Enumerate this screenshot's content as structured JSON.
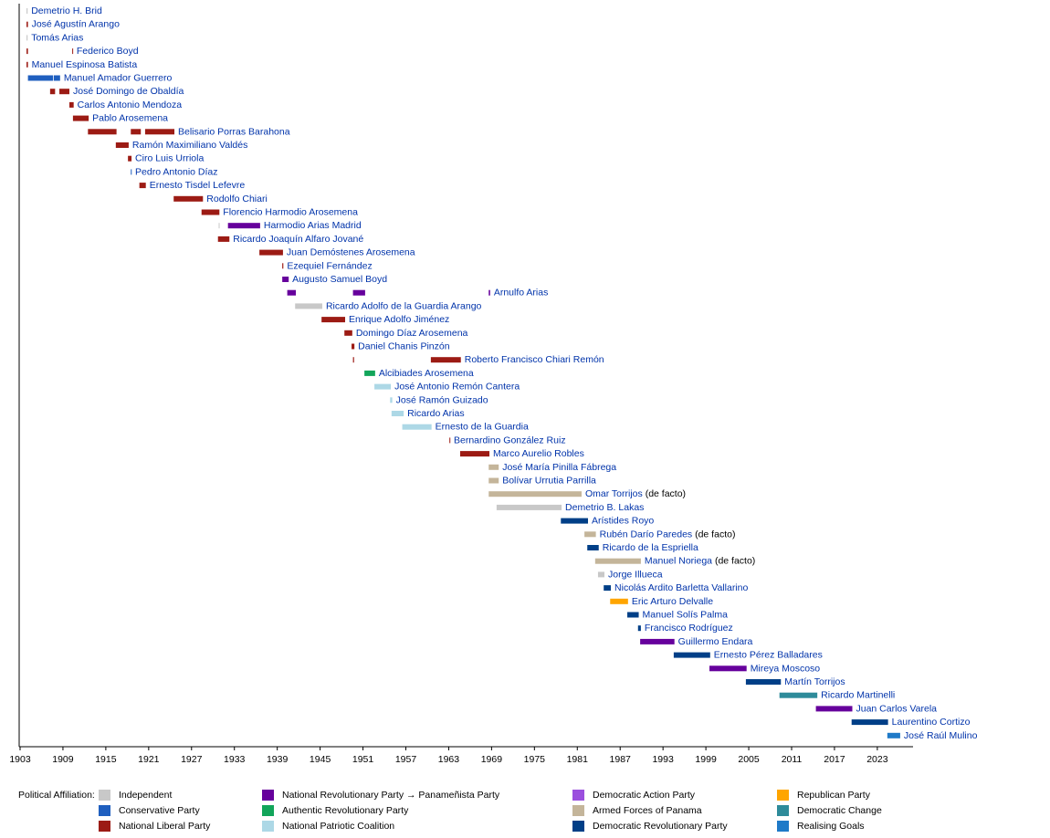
{
  "chart_data": {
    "type": "timeline",
    "xlim": [
      1903,
      2028
    ],
    "xticks": [
      1903,
      1909,
      1915,
      1921,
      1927,
      1933,
      1939,
      1945,
      1951,
      1957,
      1963,
      1969,
      1975,
      1981,
      1987,
      1993,
      1999,
      2005,
      2011,
      2017,
      2023
    ],
    "legend_title": "Political Affiliation:",
    "parties": [
      {
        "name": "Independent",
        "color": "#c8c8c8"
      },
      {
        "name": "Conservative Party",
        "color": "#1f5fbf"
      },
      {
        "name": "National Liberal Party",
        "color": "#9c1b14"
      },
      {
        "name": "National Revolutionary Party → Panameñista Party",
        "color": "#66009c"
      },
      {
        "name": "Authentic Revolutionary Party",
        "color": "#12a55a"
      },
      {
        "name": "National Patriotic Coalition",
        "color": "#add8e6"
      },
      {
        "name": "Democratic Action Party",
        "color": "#9b4fde"
      },
      {
        "name": "Armed Forces of Panama",
        "color": "#c4b59a"
      },
      {
        "name": "Democratic Revolutionary Party",
        "color": "#003f87"
      },
      {
        "name": "Republican Party",
        "color": "#ffa500"
      },
      {
        "name": "Democratic Change",
        "color": "#2e8b9a"
      },
      {
        "name": "Realising Goals",
        "color": "#1f7ac8"
      }
    ],
    "rows": [
      {
        "name": "Demetrio H. Brid",
        "segments": [
          {
            "start": 1903.9,
            "end": 1904.05,
            "party": "Independent"
          }
        ]
      },
      {
        "name": "José Agustín Arango",
        "segments": [
          {
            "start": 1903.9,
            "end": 1904.1,
            "party": "National Liberal Party"
          }
        ]
      },
      {
        "name": "Tomás Arias",
        "segments": [
          {
            "start": 1903.9,
            "end": 1904.05,
            "party": "Independent"
          }
        ]
      },
      {
        "name": "Federico Boyd",
        "segments": [
          {
            "start": 1903.9,
            "end": 1904.1,
            "party": "National Liberal Party"
          },
          {
            "start": 1910.3,
            "end": 1910.4,
            "party": "National Liberal Party"
          }
        ]
      },
      {
        "name": "Manuel Espinosa Batista",
        "segments": [
          {
            "start": 1903.9,
            "end": 1904.1,
            "party": "National Liberal Party"
          }
        ]
      },
      {
        "name": "Manuel Amador Guerrero",
        "segments": [
          {
            "start": 1904.1,
            "end": 1907.6,
            "party": "Conservative Party"
          },
          {
            "start": 1907.7,
            "end": 1908.6,
            "party": "Conservative Party"
          }
        ]
      },
      {
        "name": "José Domingo de Obaldía",
        "segments": [
          {
            "start": 1907.2,
            "end": 1907.9,
            "party": "National Liberal Party"
          },
          {
            "start": 1908.5,
            "end": 1909.9,
            "party": "National Liberal Party"
          }
        ]
      },
      {
        "name": "Carlos Antonio Mendoza",
        "segments": [
          {
            "start": 1909.9,
            "end": 1910.5,
            "party": "National Liberal Party"
          }
        ]
      },
      {
        "name": "Pablo Arosemena",
        "segments": [
          {
            "start": 1910.4,
            "end": 1912.6,
            "party": "National Liberal Party"
          }
        ]
      },
      {
        "name": "Belisario Porras Barahona",
        "segments": [
          {
            "start": 1912.5,
            "end": 1916.5,
            "party": "National Liberal Party"
          },
          {
            "start": 1918.5,
            "end": 1919.9,
            "party": "National Liberal Party"
          },
          {
            "start": 1920.5,
            "end": 1924.6,
            "party": "National Liberal Party"
          }
        ]
      },
      {
        "name": "Ramón Maximiliano Valdés",
        "segments": [
          {
            "start": 1916.4,
            "end": 1918.2,
            "party": "National Liberal Party"
          }
        ]
      },
      {
        "name": "Ciro Luis Urriola",
        "segments": [
          {
            "start": 1918.1,
            "end": 1918.6,
            "party": "National Liberal Party"
          }
        ]
      },
      {
        "name": "Pedro Antonio Díaz",
        "segments": [
          {
            "start": 1918.5,
            "end": 1918.6,
            "party": "Conservative Party"
          }
        ]
      },
      {
        "name": "Ernesto Tisdel Lefevre",
        "segments": [
          {
            "start": 1919.7,
            "end": 1920.6,
            "party": "National Liberal Party"
          }
        ]
      },
      {
        "name": "Rodolfo Chiari",
        "segments": [
          {
            "start": 1924.5,
            "end": 1928.6,
            "party": "National Liberal Party"
          }
        ]
      },
      {
        "name": "Florencio Harmodio Arosemena",
        "segments": [
          {
            "start": 1928.4,
            "end": 1930.9,
            "party": "National Liberal Party"
          }
        ]
      },
      {
        "name": "Harmodio Arias Madrid",
        "segments": [
          {
            "start": 1930.8,
            "end": 1930.9,
            "party": "Independent"
          },
          {
            "start": 1932.1,
            "end": 1936.6,
            "party": "National Revolutionary Party → Panameñista Party"
          }
        ]
      },
      {
        "name": "Ricardo Joaquín Alfaro Jované",
        "segments": [
          {
            "start": 1930.7,
            "end": 1932.3,
            "party": "National Liberal Party"
          }
        ]
      },
      {
        "name": "Juan Demóstenes Arosemena",
        "segments": [
          {
            "start": 1936.5,
            "end": 1939.8,
            "party": "National Liberal Party"
          }
        ]
      },
      {
        "name": "Ezequiel Fernández",
        "segments": [
          {
            "start": 1939.7,
            "end": 1939.85,
            "party": "National Liberal Party"
          }
        ]
      },
      {
        "name": "Augusto Samuel Boyd",
        "segments": [
          {
            "start": 1939.7,
            "end": 1940.6,
            "party": "National Revolutionary Party → Panameñista Party"
          }
        ]
      },
      {
        "name": "Arnulfo Arias",
        "segments": [
          {
            "start": 1940.4,
            "end": 1941.6,
            "party": "National Revolutionary Party → Panameñista Party"
          },
          {
            "start": 1949.6,
            "end": 1951.3,
            "party": "National Revolutionary Party → Panameñista Party"
          },
          {
            "start": 1968.6,
            "end": 1968.8,
            "party": "National Revolutionary Party → Panameñista Party"
          }
        ]
      },
      {
        "name": "Ricardo Adolfo de la Guardia Arango",
        "segments": [
          {
            "start": 1941.5,
            "end": 1945.3,
            "party": "Independent"
          }
        ]
      },
      {
        "name": "Enrique Adolfo Jiménez",
        "segments": [
          {
            "start": 1945.2,
            "end": 1948.5,
            "party": "National Liberal Party"
          }
        ]
      },
      {
        "name": "Domingo Díaz Arosemena",
        "segments": [
          {
            "start": 1948.4,
            "end": 1949.5,
            "party": "National Liberal Party"
          }
        ]
      },
      {
        "name": "Daniel Chanis Pinzón",
        "segments": [
          {
            "start": 1949.4,
            "end": 1949.8,
            "party": "National Liberal Party"
          }
        ]
      },
      {
        "name": "Roberto Francisco Chiari Remón",
        "segments": [
          {
            "start": 1949.6,
            "end": 1949.75,
            "party": "National Liberal Party"
          },
          {
            "start": 1960.5,
            "end": 1964.7,
            "party": "National Liberal Party"
          }
        ]
      },
      {
        "name": "Alcibiades Arosemena",
        "segments": [
          {
            "start": 1951.2,
            "end": 1952.7,
            "party": "Authentic Revolutionary Party"
          }
        ]
      },
      {
        "name": "José Antonio Remón Cantera",
        "segments": [
          {
            "start": 1952.6,
            "end": 1954.9,
            "party": "National Patriotic Coalition"
          }
        ]
      },
      {
        "name": "José Ramón Guizado",
        "segments": [
          {
            "start": 1954.8,
            "end": 1955.1,
            "party": "National Patriotic Coalition"
          }
        ]
      },
      {
        "name": "Ricardo Arias",
        "segments": [
          {
            "start": 1955.0,
            "end": 1956.7,
            "party": "National Patriotic Coalition"
          }
        ]
      },
      {
        "name": "Ernesto de la Guardia",
        "segments": [
          {
            "start": 1956.5,
            "end": 1960.6,
            "party": "National Patriotic Coalition"
          }
        ]
      },
      {
        "name": "Bernardino González Ruiz",
        "segments": [
          {
            "start": 1963.1,
            "end": 1963.2,
            "party": "National Liberal Party"
          }
        ]
      },
      {
        "name": "Marco Aurelio Robles",
        "segments": [
          {
            "start": 1964.6,
            "end": 1968.7,
            "party": "National Liberal Party"
          }
        ]
      },
      {
        "name": "José María Pinilla Fábrega",
        "segments": [
          {
            "start": 1968.6,
            "end": 1970.0,
            "party": "Armed Forces of Panama"
          }
        ]
      },
      {
        "name": "Bolívar Urrutia Parrilla",
        "segments": [
          {
            "start": 1968.6,
            "end": 1970.0,
            "party": "Armed Forces of Panama"
          }
        ]
      },
      {
        "name": "Omar Torrijos",
        "note": "(de facto)",
        "segments": [
          {
            "start": 1968.6,
            "end": 1981.6,
            "party": "Armed Forces of Panama"
          }
        ]
      },
      {
        "name": "Demetrio B. Lakas",
        "segments": [
          {
            "start": 1969.7,
            "end": 1978.8,
            "party": "Independent"
          }
        ]
      },
      {
        "name": "Arístides Royo",
        "segments": [
          {
            "start": 1978.7,
            "end": 1982.5,
            "party": "Democratic Revolutionary Party"
          }
        ]
      },
      {
        "name": "Rubén Darío Paredes",
        "note": "(de facto)",
        "segments": [
          {
            "start": 1982.0,
            "end": 1983.6,
            "party": "Armed Forces of Panama"
          }
        ]
      },
      {
        "name": "Ricardo de la Espriella",
        "segments": [
          {
            "start": 1982.4,
            "end": 1984.0,
            "party": "Democratic Revolutionary Party"
          }
        ]
      },
      {
        "name": "Manuel Noriega",
        "note": "(de facto)",
        "segments": [
          {
            "start": 1983.5,
            "end": 1989.9,
            "party": "Armed Forces of Panama"
          }
        ]
      },
      {
        "name": "Jorge Illueca",
        "segments": [
          {
            "start": 1983.9,
            "end": 1984.8,
            "party": "Independent"
          }
        ]
      },
      {
        "name": "Nicolás Ardito Barletta Vallarino",
        "segments": [
          {
            "start": 1984.7,
            "end": 1985.7,
            "party": "Democratic Revolutionary Party"
          }
        ]
      },
      {
        "name": "Eric Arturo Delvalle",
        "segments": [
          {
            "start": 1985.6,
            "end": 1988.1,
            "party": "Republican Party"
          }
        ]
      },
      {
        "name": "Manuel Solís Palma",
        "segments": [
          {
            "start": 1988.0,
            "end": 1989.6,
            "party": "Democratic Revolutionary Party"
          }
        ]
      },
      {
        "name": "Francisco Rodríguez",
        "segments": [
          {
            "start": 1989.5,
            "end": 1989.9,
            "party": "Democratic Revolutionary Party"
          }
        ]
      },
      {
        "name": "Guillermo Endara",
        "segments": [
          {
            "start": 1989.8,
            "end": 1994.6,
            "party": "National Revolutionary Party → Panameñista Party"
          }
        ]
      },
      {
        "name": "Ernesto Pérez Balladares",
        "segments": [
          {
            "start": 1994.5,
            "end": 1999.6,
            "party": "Democratic Revolutionary Party"
          }
        ]
      },
      {
        "name": "Mireya Moscoso",
        "segments": [
          {
            "start": 1999.5,
            "end": 2004.7,
            "party": "National Revolutionary Party → Panameñista Party"
          }
        ]
      },
      {
        "name": "Martín Torrijos",
        "segments": [
          {
            "start": 2004.6,
            "end": 2009.5,
            "party": "Democratic Revolutionary Party"
          }
        ]
      },
      {
        "name": "Ricardo Martinelli",
        "segments": [
          {
            "start": 2009.3,
            "end": 2014.6,
            "party": "Democratic Change"
          }
        ]
      },
      {
        "name": "Juan Carlos Varela",
        "segments": [
          {
            "start": 2014.4,
            "end": 2019.5,
            "party": "National Revolutionary Party → Panameñista Party"
          }
        ]
      },
      {
        "name": "Laurentino Cortizo",
        "segments": [
          {
            "start": 2019.4,
            "end": 2024.5,
            "party": "Democratic Revolutionary Party"
          }
        ]
      },
      {
        "name": "José Raúl Mulino",
        "segments": [
          {
            "start": 2024.4,
            "end": 2026.2,
            "party": "Realising Goals"
          }
        ]
      }
    ]
  }
}
